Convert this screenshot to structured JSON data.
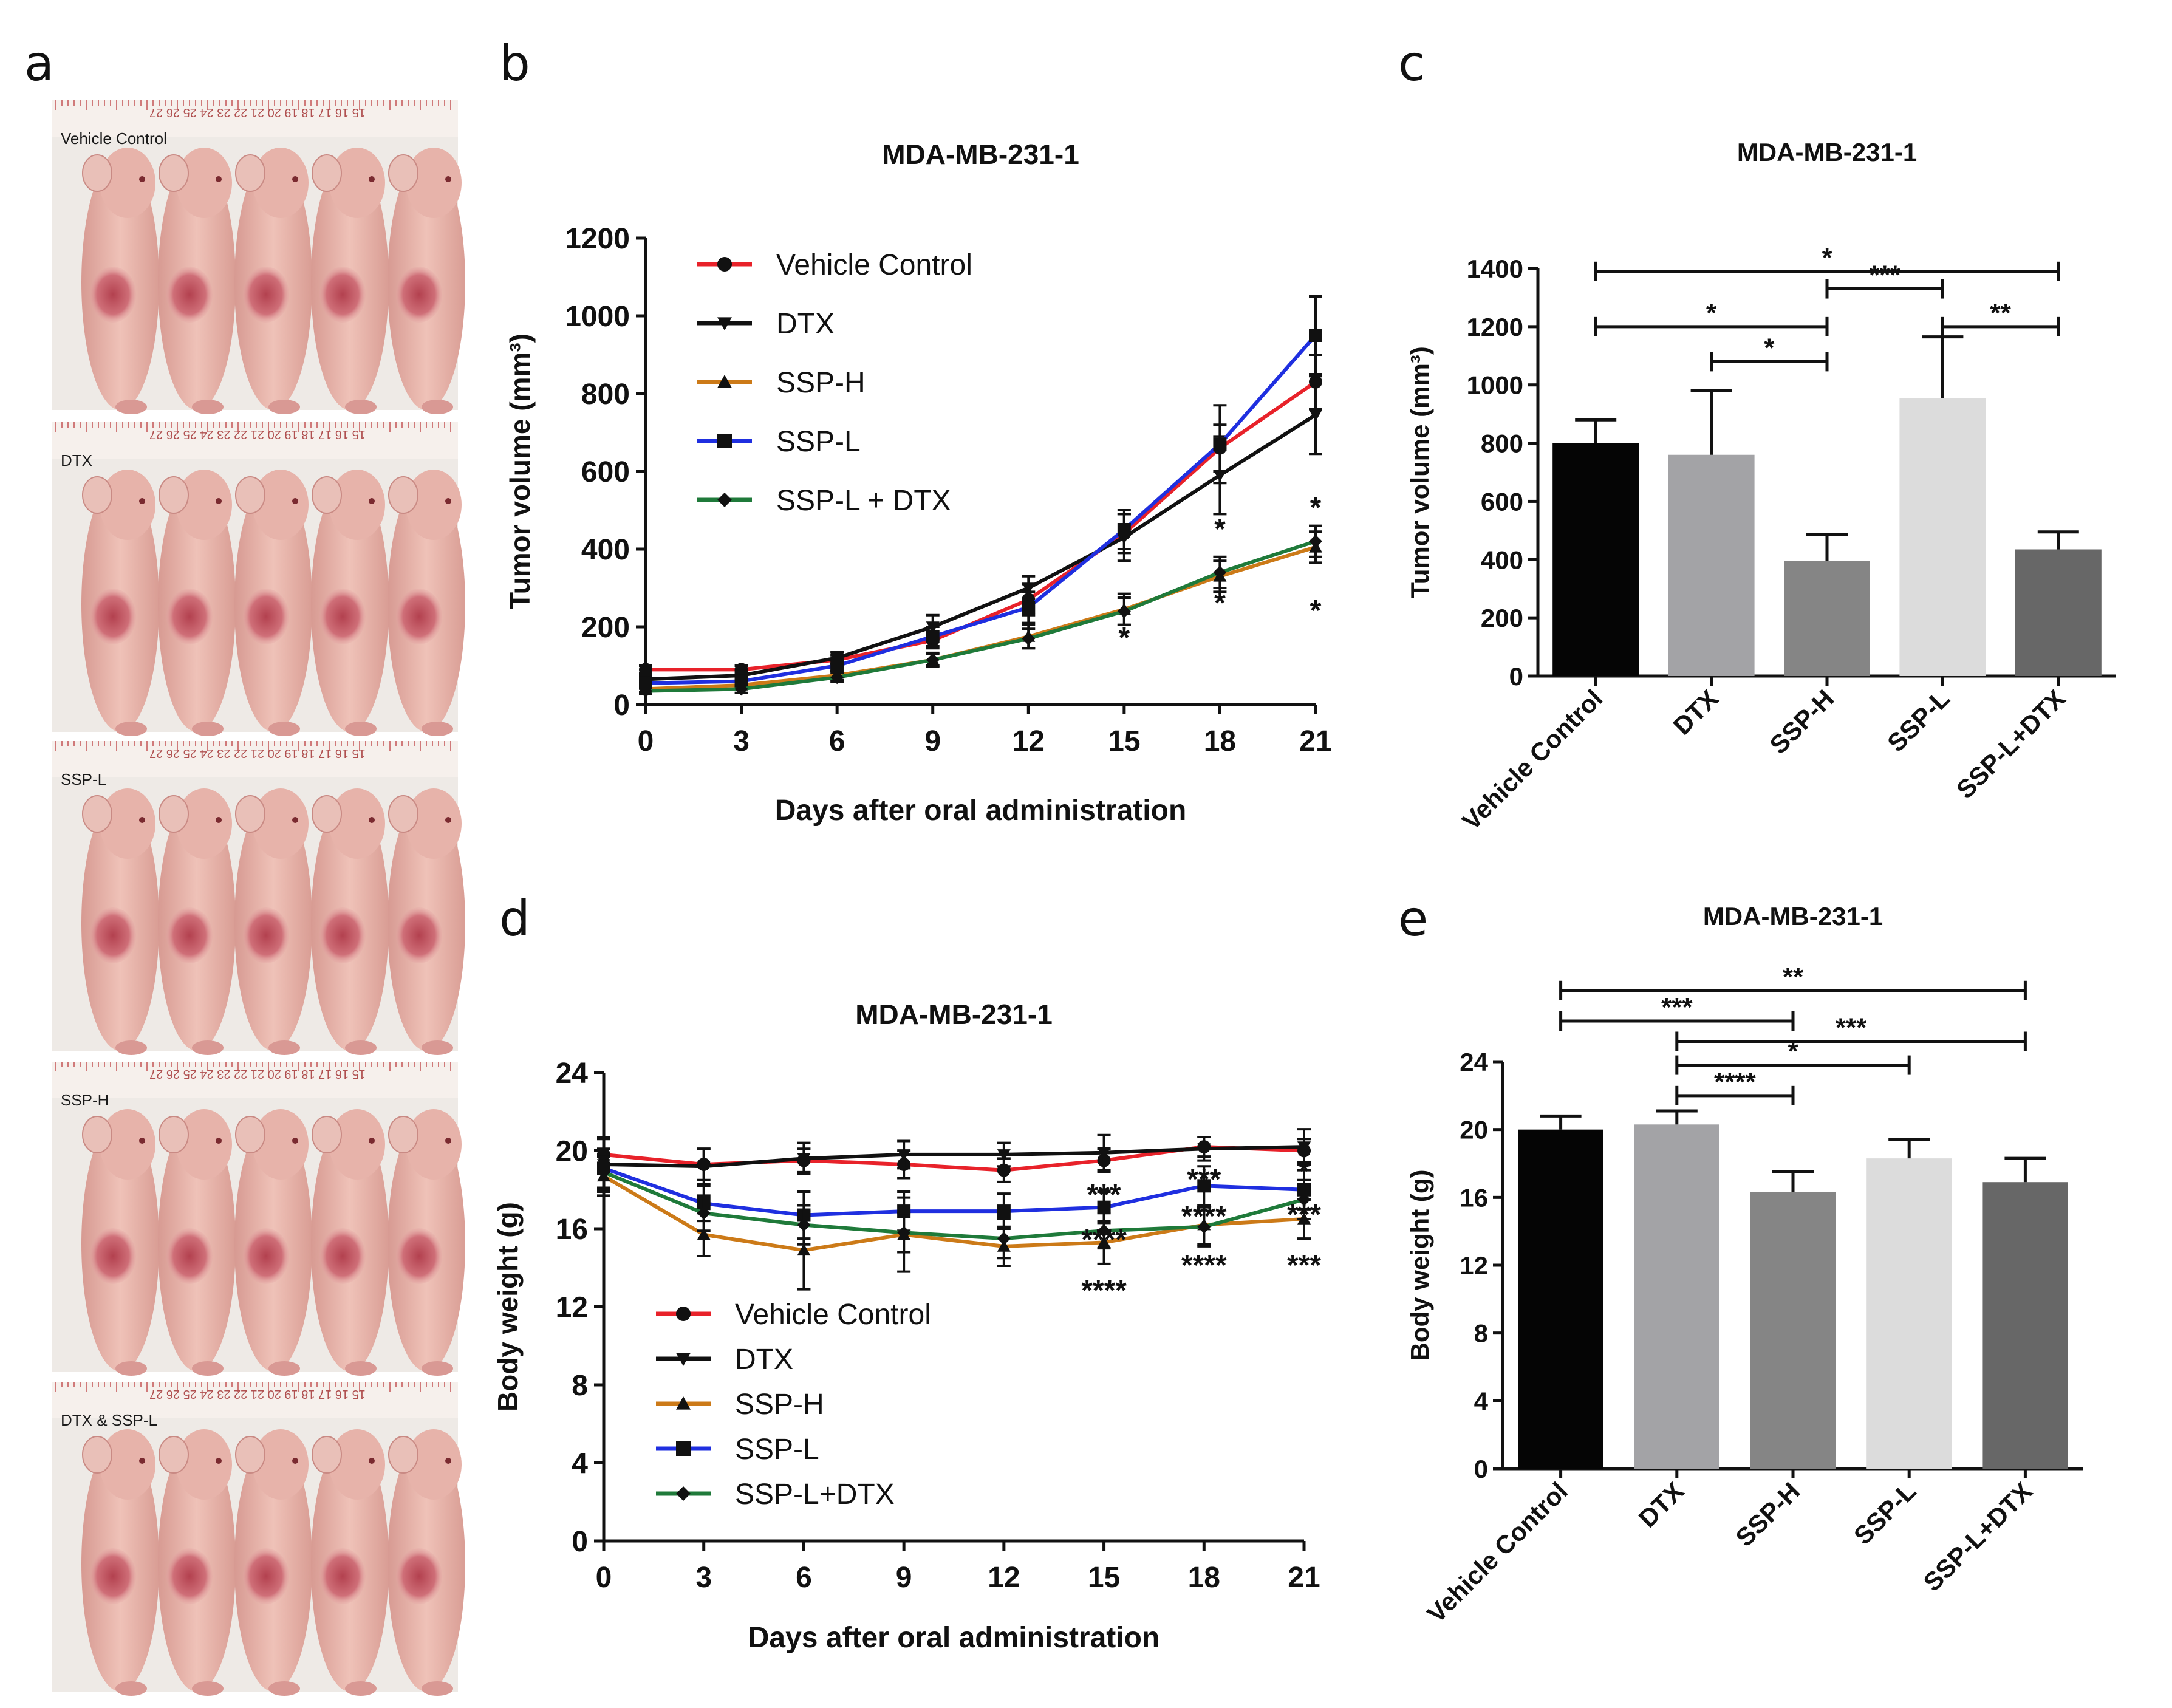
{
  "panel_letters": {
    "a": "a",
    "b": "b",
    "c": "c",
    "d": "d",
    "e": "e"
  },
  "photos": [
    {
      "label": "Vehicle Control",
      "ruler": "15 16 17 18 19 20 21 22 23 24 25 26 27"
    },
    {
      "label": "DTX",
      "ruler": "15 16 17 18 19 20 21 22 23 24 25 26 27"
    },
    {
      "label": "SSP-L",
      "ruler": "15 16 17 18 19 20 21 22 23 24 25 26 27"
    },
    {
      "label": "SSP-H",
      "ruler": "15 16 17 18 19 20 21 22 23 24 25 26 27"
    },
    {
      "label": "DTX & SSP-L",
      "ruler": "15 16 17 18 19 20 21 22 23 24 25 26 27"
    }
  ],
  "colors": {
    "vehicle": "#e8222a",
    "dtx": "#111111",
    "ssph": "#cc7a18",
    "sspl": "#1f2fe0",
    "combo": "#1f7a3a",
    "bar_vehicle": "#050505",
    "bar_dtx": "#a3a3a6",
    "bar_ssph": "#858585",
    "bar_sspl": "#dcdcdc",
    "bar_combo": "#676767"
  },
  "chart_data": [
    {
      "id": "b",
      "type": "line",
      "title": "MDA-MB-231-1",
      "xlabel": "Days after oral administration",
      "ylabel": "Tumor volume (mm³)",
      "x": [
        0,
        3,
        6,
        9,
        12,
        15,
        18,
        21
      ],
      "xlim": [
        0,
        21
      ],
      "ylim": [
        0,
        1200
      ],
      "yticks": [
        0,
        200,
        400,
        600,
        800,
        1000,
        1200
      ],
      "series": [
        {
          "name": "Vehicle Control",
          "color_key": "vehicle",
          "marker": "circle",
          "values": [
            90,
            90,
            115,
            165,
            270,
            440,
            660,
            830
          ],
          "errors": [
            10,
            10,
            12,
            20,
            40,
            50,
            60,
            70
          ]
        },
        {
          "name": "DTX",
          "color_key": "dtx",
          "marker": "tri-down",
          "values": [
            65,
            75,
            120,
            200,
            300,
            430,
            590,
            745
          ],
          "errors": [
            10,
            12,
            15,
            30,
            30,
            60,
            100,
            100
          ]
        },
        {
          "name": "SSP-H",
          "color_key": "ssph",
          "marker": "tri-up",
          "values": [
            40,
            50,
            75,
            115,
            175,
            245,
            330,
            405
          ],
          "errors": [
            8,
            10,
            12,
            18,
            30,
            40,
            40,
            40
          ]
        },
        {
          "name": "SSP-L",
          "color_key": "sspl",
          "marker": "square",
          "values": [
            55,
            60,
            100,
            175,
            250,
            450,
            670,
            950
          ],
          "errors": [
            10,
            12,
            14,
            25,
            40,
            50,
            100,
            100
          ]
        },
        {
          "name": "SSP-L + DTX",
          "color_key": "combo",
          "marker": "diamond",
          "values": [
            35,
            40,
            70,
            115,
            170,
            240,
            340,
            420
          ],
          "errors": [
            8,
            10,
            12,
            15,
            25,
            35,
            40,
            40
          ]
        }
      ],
      "annotations": [
        {
          "text": "*",
          "x": 15,
          "y": 175
        },
        {
          "text": "*",
          "x": 18,
          "y": 455
        },
        {
          "text": "*",
          "x": 18,
          "y": 265
        },
        {
          "text": "*",
          "x": 21,
          "y": 510
        },
        {
          "text": "*",
          "x": 21,
          "y": 245
        }
      ]
    },
    {
      "id": "c",
      "type": "bar",
      "title": "MDA-MB-231-1",
      "xlabel": "",
      "ylabel": "Tumor volume (mm³)",
      "categories": [
        "Vehicle Control",
        "DTX",
        "SSP-H",
        "SSP-L",
        "SSP-L+DTX"
      ],
      "color_keys": [
        "bar_vehicle",
        "bar_dtx",
        "bar_ssph",
        "bar_sspl",
        "bar_combo"
      ],
      "values": [
        800,
        760,
        395,
        955,
        435
      ],
      "errors": [
        80,
        220,
        90,
        210,
        60
      ],
      "ylim": [
        0,
        1400
      ],
      "yticks": [
        0,
        200,
        400,
        600,
        800,
        1000,
        1200,
        1400
      ],
      "significance": [
        {
          "from": 0,
          "to": 4,
          "y": 1390,
          "label": "*"
        },
        {
          "from": 0,
          "to": 2,
          "y": 1200,
          "label": "*"
        },
        {
          "from": 1,
          "to": 2,
          "y": 1080,
          "label": "*"
        },
        {
          "from": 2,
          "to": 3,
          "y": 1330,
          "label": "***"
        },
        {
          "from": 3,
          "to": 4,
          "y": 1200,
          "label": "**"
        }
      ]
    },
    {
      "id": "d",
      "type": "line",
      "title": "MDA-MB-231-1",
      "xlabel": "Days after oral administration",
      "ylabel": "Body weight  (g)",
      "x": [
        0,
        3,
        6,
        9,
        12,
        15,
        18,
        21
      ],
      "xlim": [
        0,
        21
      ],
      "ylim": [
        0,
        24
      ],
      "yticks": [
        0,
        4,
        8,
        12,
        16,
        20,
        24
      ],
      "series": [
        {
          "name": "Vehicle Control",
          "color_key": "vehicle",
          "marker": "circle",
          "values": [
            19.8,
            19.3,
            19.5,
            19.3,
            19.0,
            19.5,
            20.2,
            20.0
          ],
          "errors": [
            0.8,
            0.8,
            0.6,
            0.7,
            0.6,
            0.6,
            0.5,
            0.6
          ]
        },
        {
          "name": "DTX",
          "color_key": "dtx",
          "marker": "tri-down",
          "values": [
            19.3,
            19.2,
            19.6,
            19.8,
            19.8,
            19.9,
            20.1,
            20.2
          ],
          "errors": [
            1.4,
            0.9,
            0.8,
            0.7,
            0.6,
            0.9,
            0.6,
            0.9
          ]
        },
        {
          "name": "SSP-H",
          "color_key": "ssph",
          "marker": "tri-up",
          "values": [
            18.7,
            15.7,
            14.9,
            15.7,
            15.1,
            15.3,
            16.2,
            16.5
          ],
          "errors": [
            1.0,
            1.1,
            2.0,
            1.9,
            1.0,
            1.1,
            1.0,
            1.0
          ]
        },
        {
          "name": "SSP-L",
          "color_key": "sspl",
          "marker": "square",
          "values": [
            19.1,
            17.3,
            16.7,
            16.9,
            16.9,
            17.1,
            18.2,
            18.0
          ],
          "errors": [
            1.0,
            0.9,
            1.2,
            1.0,
            0.9,
            0.8,
            1.0,
            1.0
          ]
        },
        {
          "name": "SSP-L+DTX",
          "color_key": "combo",
          "marker": "diamond",
          "values": [
            18.9,
            16.8,
            16.2,
            15.8,
            15.5,
            15.9,
            16.1,
            17.5
          ],
          "errors": [
            0.9,
            0.9,
            1.0,
            1.0,
            1.0,
            0.9,
            1.0,
            1.0
          ]
        }
      ],
      "annotations": [
        {
          "text": "***",
          "x": 15,
          "y": 17.8
        },
        {
          "text": "****",
          "x": 15,
          "y": 15.5
        },
        {
          "text": "****",
          "x": 15,
          "y": 12.9
        },
        {
          "text": "***",
          "x": 18,
          "y": 18.6
        },
        {
          "text": "****",
          "x": 18,
          "y": 16.7
        },
        {
          "text": "****",
          "x": 18,
          "y": 14.2
        },
        {
          "text": "*",
          "x": 21,
          "y": 19.0
        },
        {
          "text": "***",
          "x": 21,
          "y": 16.8
        },
        {
          "text": "***",
          "x": 21,
          "y": 14.2
        }
      ]
    },
    {
      "id": "e",
      "type": "bar",
      "title": "MDA-MB-231-1",
      "xlabel": "",
      "ylabel": "Body weight  (g)",
      "categories": [
        "Vehicle Control",
        "DTX",
        "SSP-H",
        "SSP-L",
        "SSP-L+DTX"
      ],
      "color_keys": [
        "bar_vehicle",
        "bar_dtx",
        "bar_ssph",
        "bar_sspl",
        "bar_combo"
      ],
      "values": [
        20.0,
        20.3,
        16.3,
        18.3,
        16.9
      ],
      "errors": [
        0.8,
        0.8,
        1.2,
        1.1,
        1.4
      ],
      "ylim": [
        0,
        24
      ],
      "yticks": [
        0,
        4,
        8,
        12,
        16,
        20,
        24
      ],
      "significance": [
        {
          "from": 0,
          "to": 4,
          "y": 28.2,
          "label": "**"
        },
        {
          "from": 0,
          "to": 2,
          "y": 26.4,
          "label": "***"
        },
        {
          "from": 1,
          "to": 4,
          "y": 25.2,
          "label": "***"
        },
        {
          "from": 1,
          "to": 3,
          "y": 23.8,
          "label": "*"
        },
        {
          "from": 1,
          "to": 2,
          "y": 22.0,
          "label": "****"
        }
      ]
    }
  ]
}
